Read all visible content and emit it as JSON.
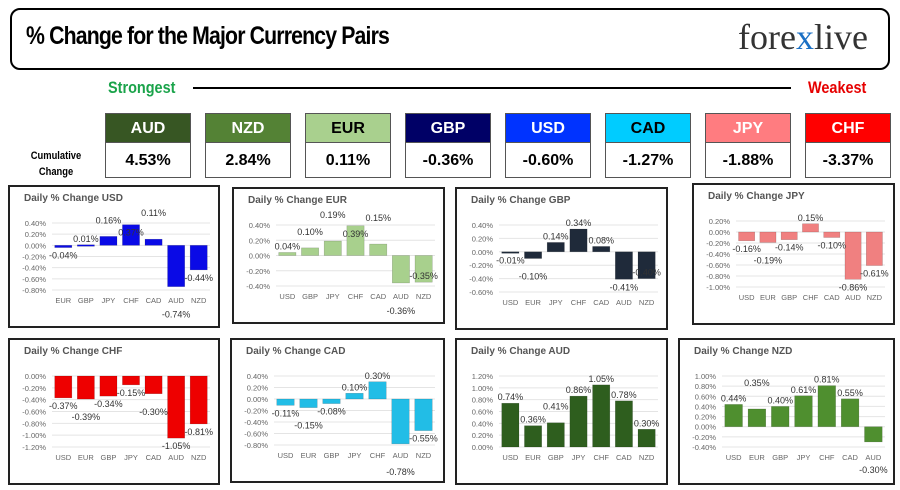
{
  "header": {
    "title": "% Change for the Major Currency Pairs",
    "logo_text": "forexlive"
  },
  "scale": {
    "strongest": "Strongest",
    "weakest": "Weakest"
  },
  "cumulative_label": "Cumulative Change",
  "currencies": [
    {
      "code": "AUD",
      "value": "4.53%",
      "bg": "#375623",
      "fg": "#ffffff"
    },
    {
      "code": "NZD",
      "value": "2.84%",
      "bg": "#548235",
      "fg": "#ffffff"
    },
    {
      "code": "EUR",
      "value": "0.11%",
      "bg": "#a9d08e",
      "fg": "#000000"
    },
    {
      "code": "GBP",
      "value": "-0.36%",
      "bg": "#000066",
      "fg": "#ffffff"
    },
    {
      "code": "USD",
      "value": "-0.60%",
      "bg": "#0033ff",
      "fg": "#ffffff"
    },
    {
      "code": "CAD",
      "value": "-1.27%",
      "bg": "#00ccff",
      "fg": "#000000"
    },
    {
      "code": "JPY",
      "value": "-1.88%",
      "bg": "#ff7c80",
      "fg": "#ffffff"
    },
    {
      "code": "CHF",
      "value": "-3.37%",
      "bg": "#ff0000",
      "fg": "#ffffff"
    }
  ],
  "chart_data": [
    {
      "type": "bar",
      "title": "Daily % Change USD",
      "color": "#0a0ae6",
      "ylim": [
        -0.8,
        0.4
      ],
      "categories": [
        "EUR",
        "GBP",
        "JPY",
        "CHF",
        "CAD",
        "AUD",
        "NZD"
      ],
      "values": [
        -0.04,
        0.01,
        0.16,
        0.37,
        0.11,
        -0.74,
        -0.44
      ]
    },
    {
      "type": "bar",
      "title": "Daily % Change EUR",
      "color": "#a8d08d",
      "ylim": [
        -0.4,
        0.4
      ],
      "categories": [
        "USD",
        "GBP",
        "JPY",
        "CHF",
        "CAD",
        "AUD",
        "NZD"
      ],
      "values": [
        0.04,
        0.1,
        0.19,
        0.39,
        0.15,
        -0.36,
        -0.35
      ]
    },
    {
      "type": "bar",
      "title": "Daily % Change GBP",
      "color": "#1f2a3a",
      "ylim": [
        -0.6,
        0.4
      ],
      "categories": [
        "USD",
        "EUR",
        "JPY",
        "CHF",
        "CAD",
        "AUD",
        "NZD"
      ],
      "values": [
        -0.01,
        -0.1,
        0.14,
        0.34,
        0.08,
        -0.41,
        -0.4
      ]
    },
    {
      "type": "bar",
      "title": "Daily % Change JPY",
      "color": "#f08080",
      "ylim": [
        -1.0,
        0.2
      ],
      "categories": [
        "USD",
        "EUR",
        "GBP",
        "CHF",
        "CAD",
        "AUD",
        "NZD"
      ],
      "values": [
        -0.16,
        -0.19,
        -0.14,
        0.15,
        -0.1,
        -0.86,
        -0.61
      ]
    },
    {
      "type": "bar",
      "title": "Daily % Change CHF",
      "color": "#ee0000",
      "ylim": [
        -1.2,
        0.0
      ],
      "categories": [
        "USD",
        "EUR",
        "GBP",
        "JPY",
        "CAD",
        "AUD",
        "NZD"
      ],
      "values": [
        -0.37,
        -0.39,
        -0.34,
        -0.15,
        -0.3,
        -1.05,
        -0.81
      ]
    },
    {
      "type": "bar",
      "title": "Daily % Change CAD",
      "color": "#22bde6",
      "ylim": [
        -0.8,
        0.4
      ],
      "categories": [
        "USD",
        "EUR",
        "GBP",
        "JPY",
        "CHF",
        "AUD",
        "NZD"
      ],
      "values": [
        -0.11,
        -0.15,
        -0.08,
        0.1,
        0.3,
        -0.78,
        -0.55
      ]
    },
    {
      "type": "bar",
      "title": "Daily % Change AUD",
      "color": "#2e5e1e",
      "ylim": [
        0.0,
        1.2
      ],
      "categories": [
        "USD",
        "EUR",
        "GBP",
        "JPY",
        "CHF",
        "CAD",
        "NZD"
      ],
      "values": [
        0.74,
        0.36,
        0.41,
        0.86,
        1.05,
        0.78,
        0.3
      ]
    },
    {
      "type": "bar",
      "title": "Daily % Change NZD",
      "color": "#4f8f2f",
      "ylim": [
        -0.4,
        1.0
      ],
      "categories": [
        "USD",
        "EUR",
        "GBP",
        "JPY",
        "CHF",
        "CAD",
        "AUD"
      ],
      "values": [
        0.44,
        0.35,
        0.4,
        0.61,
        0.81,
        0.55,
        -0.3
      ]
    }
  ]
}
